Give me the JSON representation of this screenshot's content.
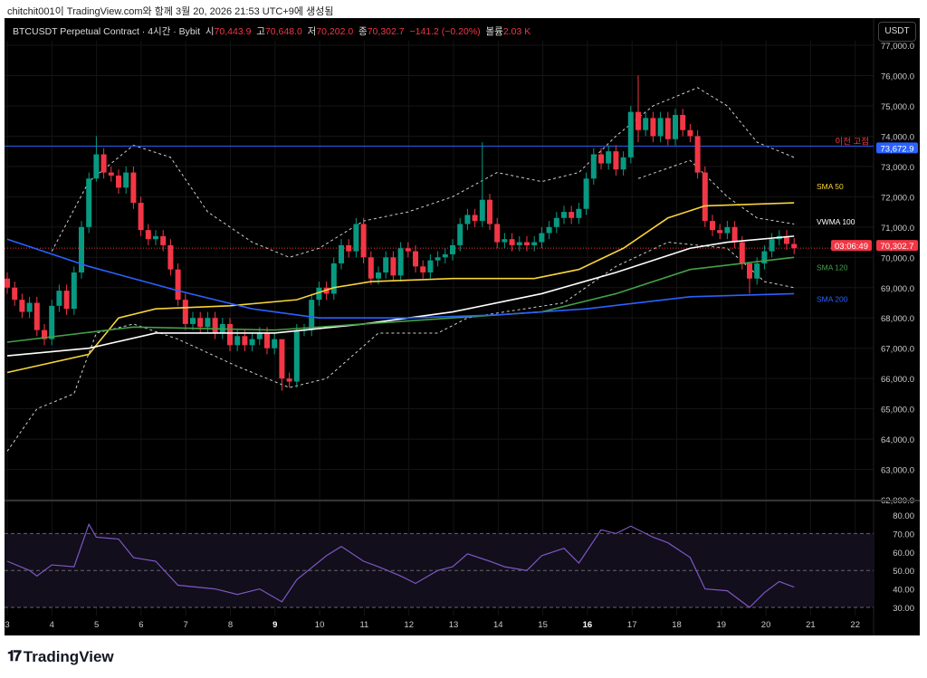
{
  "caption": "chitchit001이 TradingView.com와 함께 3월 20, 2026 21:53 UTC+9에 생성됨",
  "legend": {
    "symbol": "BTCUSDT Perpetual Contract · 4시간 · Bybit",
    "o_label": "시",
    "o": "70,443.9",
    "h_label": "고",
    "h": "70,648.0",
    "l_label": "저",
    "l": "70,202.0",
    "c_label": "종",
    "c": "70,302.7",
    "change": "−141.2 (−0.20%)",
    "vol_label": "볼륨",
    "vol": "2.03 K"
  },
  "currency_button": "USDT",
  "logo_text": "TradingView",
  "colors": {
    "up": "#089981",
    "down": "#f23645",
    "sma50": "#f7d43a",
    "vwma100": "#ffffff",
    "sma120": "#43a047",
    "sma200": "#2962ff",
    "rsi": "#7e57c2",
    "prevhigh": "#2962ff"
  },
  "chart_data": {
    "type": "candlestick",
    "price_axis": {
      "min": 62000,
      "max": 77000,
      "ticks": [
        "77,000.0",
        "76,000.0",
        "75,000.0",
        "74,000.0",
        "73,000.0",
        "72,000.0",
        "71,000.0",
        "70,000.0",
        "69,000.0",
        "68,000.0",
        "67,000.0",
        "66,000.0",
        "65,000.0",
        "64,000.0",
        "63,000.0",
        "62,000.0"
      ]
    },
    "time_axis": {
      "ticks": [
        "3",
        "4",
        "5",
        "6",
        "7",
        "8",
        "9",
        "10",
        "11",
        "12",
        "13",
        "14",
        "15",
        "16",
        "17",
        "18",
        "19",
        "20",
        "21",
        "22"
      ],
      "bold": [
        "9",
        "16"
      ],
      "candles_per_day": 6
    },
    "closes_k": [
      69.0,
      68.6,
      68.2,
      68.5,
      67.6,
      67.3,
      68.4,
      68.9,
      68.3,
      69.5,
      71.0,
      72.6,
      73.4,
      72.8,
      72.7,
      72.3,
      72.8,
      71.8,
      70.9,
      70.6,
      70.7,
      70.4,
      69.6,
      68.6,
      67.8,
      68.0,
      67.7,
      68.0,
      67.5,
      67.8,
      67.1,
      67.4,
      67.1,
      67.3,
      67.5,
      67.0,
      67.3,
      66.0,
      65.9,
      67.6,
      67.6,
      68.6,
      69.0,
      68.8,
      69.8,
      70.4,
      70.2,
      71.1,
      70.0,
      69.3,
      69.5,
      70.0,
      69.4,
      70.3,
      70.2,
      69.7,
      69.5,
      69.9,
      70.0,
      70.1,
      70.4,
      71.1,
      71.4,
      71.2,
      71.9,
      71.1,
      70.5,
      70.6,
      70.4,
      70.5,
      70.4,
      70.5,
      70.8,
      71.0,
      71.3,
      71.5,
      71.3,
      71.6,
      72.6,
      73.4,
      73.1,
      73.5,
      72.9,
      73.3,
      74.8,
      74.2,
      74.6,
      74.0,
      74.6,
      73.9,
      74.7,
      74.2,
      74.0,
      72.8,
      71.2,
      70.9,
      70.8,
      71.0,
      70.5,
      69.8,
      69.3,
      69.8,
      70.2,
      70.6,
      70.7,
      70.443,
      70.303
    ],
    "wick_overrides": [
      [
        12,
        74.0,
        72.5
      ],
      [
        64,
        73.8,
        71.0
      ],
      [
        85,
        76.0,
        73.8
      ],
      [
        37,
        66.4,
        65.6
      ],
      [
        100,
        69.8,
        68.8
      ]
    ],
    "series": [
      {
        "name": "SMA 50",
        "label": "SMA 50",
        "color": "#f7d43a",
        "points": [
          [
            0,
            66.2
          ],
          [
            11,
            66.8
          ],
          [
            15,
            68.0
          ],
          [
            20,
            68.3
          ],
          [
            30,
            68.4
          ],
          [
            39,
            68.6
          ],
          [
            44,
            69.0
          ],
          [
            49,
            69.2
          ],
          [
            60,
            69.3
          ],
          [
            71,
            69.3
          ],
          [
            77,
            69.6
          ],
          [
            83,
            70.3
          ],
          [
            89,
            71.3
          ],
          [
            94,
            71.7
          ],
          [
            106,
            71.8
          ]
        ]
      },
      {
        "name": "VWMA 100",
        "label": "VWMA 100",
        "color": "#ffffff",
        "points": [
          [
            0,
            66.75
          ],
          [
            11,
            67.0
          ],
          [
            20,
            67.5
          ],
          [
            36,
            67.5
          ],
          [
            48,
            67.8
          ],
          [
            60,
            68.2
          ],
          [
            72,
            68.8
          ],
          [
            82,
            69.5
          ],
          [
            92,
            70.3
          ],
          [
            97,
            70.5
          ],
          [
            106,
            70.7
          ]
        ]
      },
      {
        "name": "SMA 120",
        "label": "SMA 120",
        "color": "#43a047",
        "points": [
          [
            0,
            67.2
          ],
          [
            17,
            67.7
          ],
          [
            36,
            67.6
          ],
          [
            54,
            67.9
          ],
          [
            72,
            68.2
          ],
          [
            82,
            68.8
          ],
          [
            92,
            69.6
          ],
          [
            106,
            70.0
          ]
        ]
      },
      {
        "name": "SMA 200",
        "label": "SMA 200",
        "color": "#2962ff",
        "points": [
          [
            0,
            70.6
          ],
          [
            11,
            69.7
          ],
          [
            23,
            68.9
          ],
          [
            33,
            68.3
          ],
          [
            42,
            68.0
          ],
          [
            54,
            68.0
          ],
          [
            66,
            68.1
          ],
          [
            78,
            68.3
          ],
          [
            92,
            68.7
          ],
          [
            106,
            68.8
          ]
        ]
      }
    ],
    "bands": [
      {
        "name": "upper",
        "points": [
          [
            6,
            70.2
          ],
          [
            11,
            72.5
          ],
          [
            17,
            73.7
          ],
          [
            22,
            73.3
          ],
          [
            27,
            71.5
          ],
          [
            33,
            70.5
          ],
          [
            38,
            70.0
          ],
          [
            42,
            70.3
          ],
          [
            48,
            71.2
          ],
          [
            54,
            71.5
          ],
          [
            60,
            72.0
          ],
          [
            66,
            72.8
          ],
          [
            72,
            72.5
          ],
          [
            77,
            72.8
          ],
          [
            82,
            74.0
          ],
          [
            87,
            75.0
          ],
          [
            93,
            75.6
          ],
          [
            97,
            75.0
          ],
          [
            101,
            73.8
          ],
          [
            106,
            73.3
          ]
        ]
      },
      {
        "name": "lower",
        "points": [
          [
            0,
            63.6
          ],
          [
            4,
            65.0
          ],
          [
            9,
            65.5
          ],
          [
            12,
            67.5
          ],
          [
            17,
            67.8
          ],
          [
            23,
            67.3
          ],
          [
            31,
            66.4
          ],
          [
            38,
            65.7
          ],
          [
            43,
            66.0
          ],
          [
            50,
            67.5
          ],
          [
            58,
            67.5
          ],
          [
            62,
            68.0
          ],
          [
            67,
            68.2
          ],
          [
            75,
            68.5
          ],
          [
            82,
            69.7
          ],
          [
            89,
            70.5
          ],
          [
            97,
            70.3
          ],
          [
            102,
            69.2
          ],
          [
            106,
            69.0
          ]
        ]
      },
      {
        "name": "inner",
        "points": [
          [
            85,
            72.6
          ],
          [
            92,
            73.2
          ],
          [
            97,
            72.0
          ],
          [
            101,
            71.3
          ],
          [
            106,
            71.1
          ]
        ]
      }
    ],
    "prev_high": {
      "label": "이전 고점",
      "value": 73672.9,
      "value_label": "73,672.9"
    },
    "last_price": {
      "value_label": "70,302.7",
      "countdown": "03:06:49"
    },
    "rsi": {
      "axis_ticks": [
        "80.00",
        "70.00",
        "60.00",
        "50.00",
        "40.00",
        "30.00"
      ],
      "min": 30,
      "max": 80,
      "bands": [
        30,
        50,
        70
      ],
      "points": [
        [
          0,
          55
        ],
        [
          3,
          50
        ],
        [
          4,
          47
        ],
        [
          6,
          53
        ],
        [
          9,
          52
        ],
        [
          11,
          75
        ],
        [
          12,
          68
        ],
        [
          15,
          67
        ],
        [
          17,
          57
        ],
        [
          20,
          55
        ],
        [
          23,
          42
        ],
        [
          28,
          40
        ],
        [
          31,
          37
        ],
        [
          34,
          40
        ],
        [
          37,
          33
        ],
        [
          39,
          45
        ],
        [
          43,
          58
        ],
        [
          45,
          63
        ],
        [
          48,
          55
        ],
        [
          50,
          52
        ],
        [
          53,
          47
        ],
        [
          55,
          43
        ],
        [
          58,
          50
        ],
        [
          60,
          52
        ],
        [
          62,
          59
        ],
        [
          65,
          55
        ],
        [
          67,
          52
        ],
        [
          70,
          50
        ],
        [
          72,
          58
        ],
        [
          75,
          62
        ],
        [
          77,
          54
        ],
        [
          80,
          72
        ],
        [
          82,
          70
        ],
        [
          84,
          74
        ],
        [
          87,
          68
        ],
        [
          89,
          65
        ],
        [
          92,
          57
        ],
        [
          94,
          40
        ],
        [
          97,
          39
        ],
        [
          99,
          33
        ],
        [
          100,
          30
        ],
        [
          102,
          38
        ],
        [
          104,
          44
        ],
        [
          106,
          41
        ]
      ]
    }
  }
}
